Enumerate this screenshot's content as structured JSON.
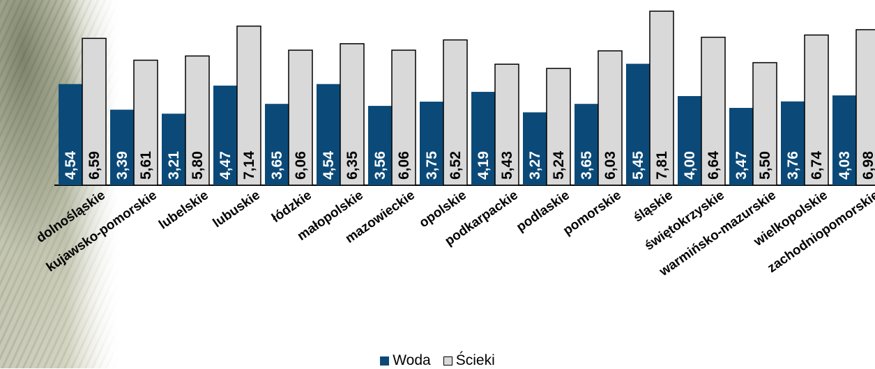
{
  "chart_data": {
    "type": "bar",
    "categories": [
      "dolnośląskie",
      "kujawsko-pomorskie",
      "lubelskie",
      "lubuskie",
      "łódzkie",
      "małopolskie",
      "mazowieckie",
      "opolskie",
      "podkarpackie",
      "podlaskie",
      "pomorskie",
      "śląskie",
      "świętokrzyskie",
      "warmińsko-mazurskie",
      "wielkopolskie",
      "zachodniopomorskie"
    ],
    "series": [
      {
        "name": "Woda",
        "color": "#0b4a78",
        "values": [
          4.54,
          3.39,
          3.21,
          4.47,
          3.65,
          4.54,
          3.56,
          3.75,
          4.19,
          3.27,
          3.65,
          5.45,
          4.0,
          3.47,
          3.76,
          4.03
        ],
        "labels": [
          "4,54",
          "3,39",
          "3,21",
          "4,47",
          "3,65",
          "4,54",
          "3,56",
          "3,75",
          "4,19",
          "3,27",
          "3,65",
          "5,45",
          "4,00",
          "3,47",
          "3,76",
          "4,03"
        ]
      },
      {
        "name": "Ścieki",
        "color": "#d9d9d9",
        "values": [
          6.59,
          5.61,
          5.8,
          7.14,
          6.06,
          6.35,
          6.06,
          6.52,
          5.43,
          5.24,
          6.03,
          7.81,
          6.64,
          5.5,
          6.74,
          6.98
        ],
        "labels": [
          "6,59",
          "5,61",
          "5,80",
          "7,14",
          "6,06",
          "6,35",
          "6,06",
          "6,52",
          "5,43",
          "5,24",
          "6,03",
          "7,81",
          "6,64",
          "5,50",
          "6,74",
          "6,98"
        ]
      }
    ],
    "legend": "bottom-center",
    "grid": false
  }
}
